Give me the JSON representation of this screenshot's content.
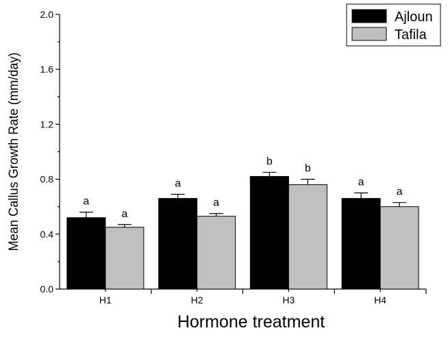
{
  "chart_data": {
    "type": "bar",
    "xlabel": "Hormone treatment",
    "ylabel": "Mean Callus Growth Rate (mm/day)",
    "categories": [
      "H1",
      "H2",
      "H3",
      "H4"
    ],
    "ylim": [
      0.0,
      2.0
    ],
    "yticks": [
      "0.0",
      "0.4",
      "0.8",
      "1.2",
      "1.6",
      "2.0"
    ],
    "series": [
      {
        "name": "Ajloun",
        "color": "#000000",
        "values": [
          0.52,
          0.66,
          0.82,
          0.66
        ],
        "errors": [
          0.04,
          0.03,
          0.03,
          0.04
        ],
        "labels": [
          "a",
          "a",
          "b",
          "a"
        ]
      },
      {
        "name": "Tafila",
        "color": "#c0c0c0",
        "values": [
          0.45,
          0.53,
          0.76,
          0.6
        ],
        "errors": [
          0.02,
          0.02,
          0.04,
          0.03
        ],
        "labels": [
          "a",
          "a",
          "b",
          "a"
        ]
      }
    ],
    "legend_position": "top-right",
    "grid": false
  }
}
